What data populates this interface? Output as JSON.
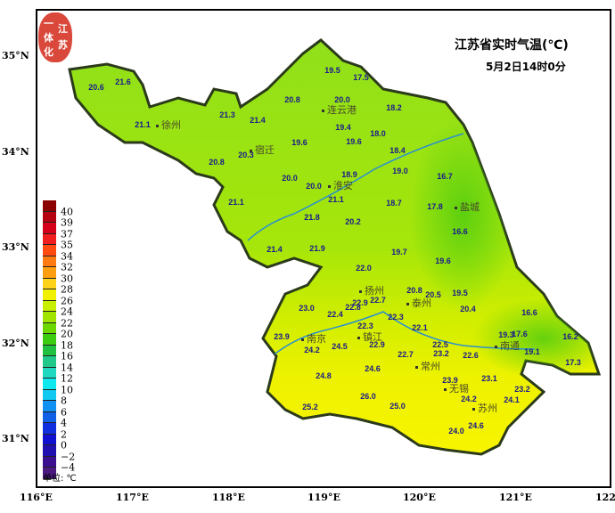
{
  "title": "江苏省实时气温(℃)",
  "subtitle": "5月2日14时0分",
  "logo_text": "江苏一体化",
  "axes": {
    "lon_labels": [
      "116°E",
      "117°E",
      "118°E",
      "119°E",
      "120°E",
      "121°E",
      "122°E"
    ],
    "lat_labels": [
      "35°N",
      "34°N",
      "33°N",
      "32°N",
      "31°N"
    ]
  },
  "legend": {
    "labels": [
      "40",
      "39",
      "37",
      "35",
      "34",
      "32",
      "30",
      "28",
      "26",
      "24",
      "22",
      "20",
      "18",
      "16",
      "14",
      "12",
      "10",
      "8",
      "6",
      "4",
      "2",
      "0",
      "−2",
      "−4"
    ],
    "colors": [
      "#8b0000",
      "#b40010",
      "#d5001a",
      "#f01e1e",
      "#ff4a10",
      "#ff7a10",
      "#ff9f10",
      "#ffd21a",
      "#f0f000",
      "#c8ee00",
      "#a0e400",
      "#6cd800",
      "#3ccc10",
      "#20c040",
      "#20c88a",
      "#20d8c0",
      "#10e8f0",
      "#10c8f0",
      "#1090f0",
      "#1060e8",
      "#1030e0",
      "#1010d0",
      "#2010b0",
      "#3a1090",
      "#4b1a80"
    ],
    "unit": "单位: ℃"
  },
  "cities": [
    "徐州",
    "宿迁",
    "连云港",
    "淮安",
    "盐城",
    "扬州",
    "泰州",
    "南京",
    "镇江",
    "常州",
    "南通",
    "无锡",
    "苏州"
  ],
  "stations": [
    "20.6",
    "21.6",
    "21.1",
    "21.3",
    "21.4",
    "20.3",
    "20.8",
    "21.1",
    "19.5",
    "17.5",
    "20.8",
    "20.0",
    "18.2",
    "19.4",
    "18.0",
    "19.6",
    "19.6",
    "18.4",
    "18.9",
    "19.0",
    "16.7",
    "20.0",
    "20.0",
    "21.1",
    "18.7",
    "17.8",
    "16.6",
    "21.8",
    "20.2",
    "21.4",
    "21.9",
    "19.7",
    "19.6",
    "22.0",
    "20.8",
    "20.5",
    "19.5",
    "22.7",
    "22.9",
    "22.8",
    "23.0",
    "22.4",
    "20.4",
    "16.6",
    "22.3",
    "22.1",
    "23.9",
    "22.3",
    "19.3",
    "17.6",
    "16.2",
    "24.2",
    "24.5",
    "22.9",
    "22.5",
    "23.2",
    "19.1",
    "22.7",
    "22.6",
    "17.3",
    "24.6",
    "23.1",
    "24.8",
    "23.9",
    "23.2",
    "26.0",
    "25.0",
    "24.2",
    "24.1",
    "25.2",
    "24.6",
    "24.0"
  ],
  "colors": {
    "station_text": "#1a1a8c",
    "river": "#2a8fd0",
    "border": "#2b3a1a"
  }
}
